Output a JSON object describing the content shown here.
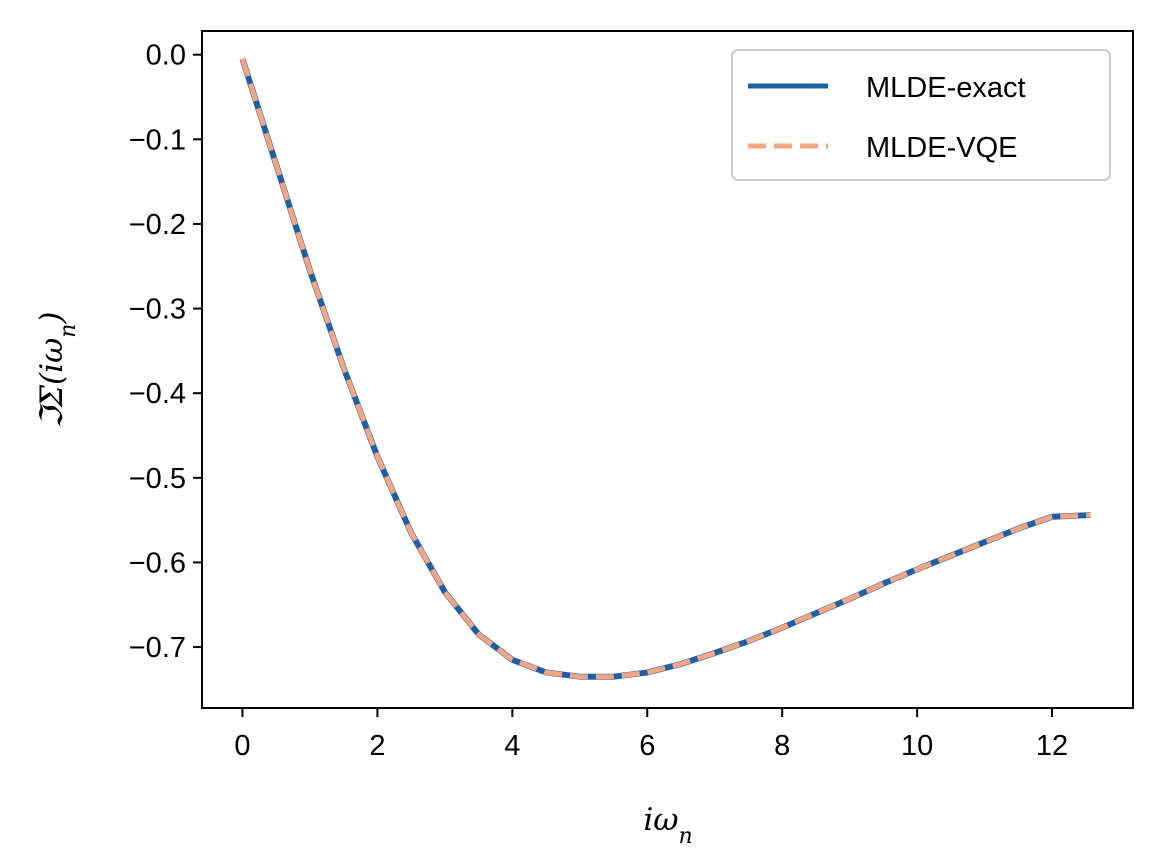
{
  "chart_data": {
    "type": "line",
    "title": "",
    "xlabel": "iω_n",
    "ylabel": "ℑΣ(iω_n)",
    "xlim": [
      -0.6,
      13.2
    ],
    "ylim": [
      -0.772,
      0.028
    ],
    "xticks": [
      0,
      2,
      4,
      6,
      8,
      10,
      12
    ],
    "yticks": [
      0.0,
      -0.1,
      -0.2,
      -0.3,
      -0.4,
      -0.5,
      -0.6,
      -0.7
    ],
    "xtick_labels": [
      "0",
      "2",
      "4",
      "6",
      "8",
      "10",
      "12"
    ],
    "ytick_labels": [
      "0.0",
      "−0.1",
      "−0.2",
      "−0.3",
      "−0.4",
      "−0.5",
      "−0.6",
      "−0.7"
    ],
    "grid": false,
    "legend_position": "top-right",
    "series": [
      {
        "name": "MLDE-exact",
        "style": "solid",
        "color": "#1f5fa8",
        "x": [
          0,
          0.5,
          1,
          1.5,
          2,
          2.5,
          3,
          3.5,
          4,
          4.5,
          5,
          5.5,
          6,
          6.5,
          7,
          7.5,
          8,
          8.5,
          9,
          9.5,
          10,
          10.5,
          11,
          11.5,
          12,
          12.57
        ],
        "y": [
          -0.005,
          -0.13,
          -0.255,
          -0.37,
          -0.475,
          -0.565,
          -0.635,
          -0.685,
          -0.715,
          -0.73,
          -0.735,
          -0.735,
          -0.73,
          -0.72,
          -0.707,
          -0.693,
          -0.677,
          -0.66,
          -0.643,
          -0.625,
          -0.608,
          -0.592,
          -0.576,
          -0.56,
          -0.546,
          -0.544
        ]
      },
      {
        "name": "MLDE-VQE",
        "style": "dashed",
        "color": "#f4a582",
        "x": [
          0,
          0.5,
          1,
          1.5,
          2,
          2.5,
          3,
          3.5,
          4,
          4.5,
          5,
          5.5,
          6,
          6.5,
          7,
          7.5,
          8,
          8.5,
          9,
          9.5,
          10,
          10.5,
          11,
          11.5,
          12,
          12.57
        ],
        "y": [
          -0.005,
          -0.13,
          -0.255,
          -0.37,
          -0.475,
          -0.565,
          -0.635,
          -0.685,
          -0.715,
          -0.73,
          -0.735,
          -0.735,
          -0.73,
          -0.72,
          -0.707,
          -0.693,
          -0.677,
          -0.66,
          -0.643,
          -0.625,
          -0.608,
          -0.592,
          -0.576,
          -0.56,
          -0.546,
          -0.544
        ]
      }
    ]
  }
}
